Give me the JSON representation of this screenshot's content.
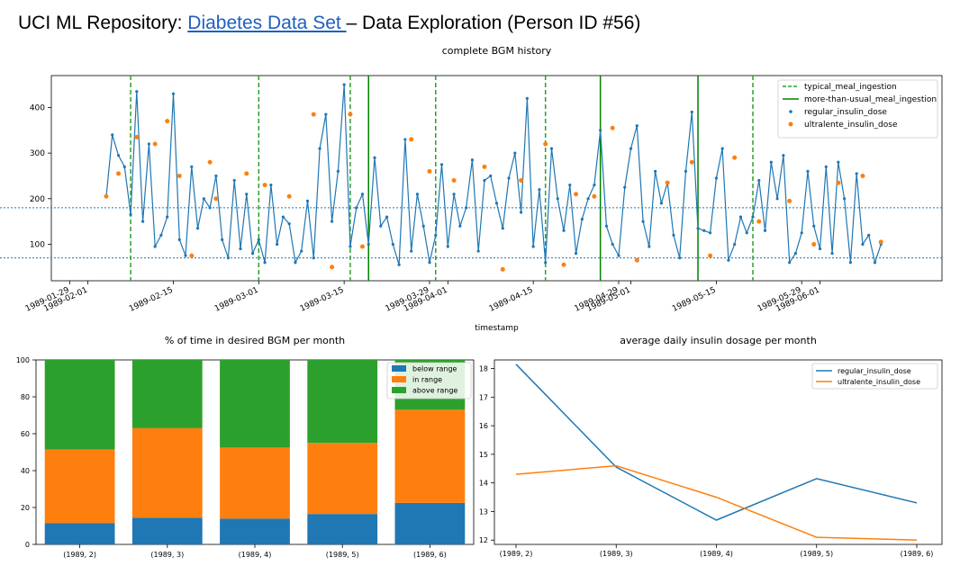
{
  "page": {
    "title_prefix": "UCI ML Repository: ",
    "title_link": "Diabetes Data Set ",
    "title_suffix": "– Data Exploration (Person ID #56)"
  },
  "chart_data": [
    {
      "type": "line",
      "title": "complete BGM history",
      "xlabel": "timestamp",
      "ylabel": "",
      "xlim": [
        "1989-01-26",
        "1989-06-21"
      ],
      "ylim": [
        20,
        470
      ],
      "yticks": [
        100,
        200,
        300,
        400
      ],
      "xticks": [
        "1989-01-29",
        "1989-02-01",
        "1989-02-15",
        "1989-03-01",
        "1989-03-15",
        "1989-03-29",
        "1989-04-01",
        "1989-04-15",
        "1989-04-29",
        "1989-05-01",
        "1989-05-15",
        "1989-05-29",
        "1989-06-01"
      ],
      "hlines": [
        180,
        70
      ],
      "legend": [
        "typical_meal_ingestion",
        "more-than-usual_meal_ingestion",
        "regular_insulin_dose",
        "ultralente_insulin_dose"
      ],
      "legend_position": "top-right",
      "typical_meal_dates": [
        "1989-02-08",
        "1989-03-01",
        "1989-03-16",
        "1989-03-30",
        "1989-04-17",
        "1989-05-21"
      ],
      "more_than_usual_meal_dates": [
        "1989-03-19",
        "1989-04-26",
        "1989-05-12"
      ],
      "bgm_series": {
        "name": "regular_insulin_dose",
        "x": [
          "1989-02-04",
          "1989-02-05",
          "1989-02-06",
          "1989-02-07",
          "1989-02-08",
          "1989-02-09",
          "1989-02-10",
          "1989-02-11",
          "1989-02-12",
          "1989-02-13",
          "1989-02-14",
          "1989-02-15",
          "1989-02-16",
          "1989-02-17",
          "1989-02-18",
          "1989-02-19",
          "1989-02-20",
          "1989-02-21",
          "1989-02-22",
          "1989-02-23",
          "1989-02-24",
          "1989-02-25",
          "1989-02-26",
          "1989-02-27",
          "1989-02-28",
          "1989-03-01",
          "1989-03-02",
          "1989-03-03",
          "1989-03-04",
          "1989-03-05",
          "1989-03-06",
          "1989-03-07",
          "1989-03-08",
          "1989-03-09",
          "1989-03-10",
          "1989-03-11",
          "1989-03-12",
          "1989-03-13",
          "1989-03-14",
          "1989-03-15",
          "1989-03-16",
          "1989-03-17",
          "1989-03-18",
          "1989-03-19",
          "1989-03-20",
          "1989-03-21",
          "1989-03-22",
          "1989-03-23",
          "1989-03-24",
          "1989-03-25",
          "1989-03-26",
          "1989-03-27",
          "1989-03-28",
          "1989-03-29",
          "1989-03-30",
          "1989-03-31",
          "1989-04-01",
          "1989-04-02",
          "1989-04-03",
          "1989-04-04",
          "1989-04-05",
          "1989-04-06",
          "1989-04-07",
          "1989-04-08",
          "1989-04-09",
          "1989-04-10",
          "1989-04-11",
          "1989-04-12",
          "1989-04-13",
          "1989-04-14",
          "1989-04-15",
          "1989-04-16",
          "1989-04-17",
          "1989-04-18",
          "1989-04-19",
          "1989-04-20",
          "1989-04-21",
          "1989-04-22",
          "1989-04-23",
          "1989-04-24",
          "1989-04-25",
          "1989-04-26",
          "1989-04-27",
          "1989-04-28",
          "1989-04-29",
          "1989-04-30",
          "1989-05-01",
          "1989-05-02",
          "1989-05-03",
          "1989-05-04",
          "1989-05-05",
          "1989-05-06",
          "1989-05-07",
          "1989-05-08",
          "1989-05-09",
          "1989-05-10",
          "1989-05-11",
          "1989-05-12",
          "1989-05-13",
          "1989-05-14",
          "1989-05-15",
          "1989-05-16",
          "1989-05-17",
          "1989-05-18",
          "1989-05-19",
          "1989-05-20",
          "1989-05-21",
          "1989-05-22",
          "1989-05-23",
          "1989-05-24",
          "1989-05-25",
          "1989-05-26",
          "1989-05-27",
          "1989-05-28",
          "1989-05-29",
          "1989-05-30",
          "1989-05-31",
          "1989-06-01",
          "1989-06-02",
          "1989-06-03",
          "1989-06-04",
          "1989-06-05",
          "1989-06-06",
          "1989-06-07",
          "1989-06-08",
          "1989-06-09",
          "1989-06-10",
          "1989-06-11"
        ],
        "y": [
          205,
          340,
          295,
          270,
          165,
          435,
          150,
          320,
          95,
          120,
          160,
          430,
          110,
          75,
          270,
          135,
          200,
          180,
          250,
          110,
          70,
          240,
          90,
          210,
          80,
          110,
          60,
          230,
          100,
          160,
          145,
          60,
          85,
          195,
          70,
          310,
          385,
          150,
          260,
          450,
          95,
          180,
          210,
          100,
          290,
          140,
          160,
          100,
          55,
          330,
          85,
          210,
          140,
          60,
          120,
          275,
          95,
          210,
          140,
          180,
          285,
          85,
          240,
          250,
          190,
          135,
          245,
          300,
          170,
          420,
          95,
          220,
          60,
          310,
          200,
          130,
          230,
          80,
          155,
          200,
          230,
          350,
          140,
          100,
          75,
          225,
          310,
          360,
          150,
          95,
          260,
          190,
          235,
          120,
          70,
          260,
          390,
          135,
          130,
          125,
          245,
          310,
          65,
          100,
          160,
          125,
          160,
          240,
          130,
          280,
          200,
          295,
          60,
          80,
          125,
          260,
          140,
          90,
          270,
          80,
          280,
          200,
          60,
          255,
          100,
          120,
          60,
          100
        ]
      },
      "ultralente_dose_points": {
        "name": "ultralente_insulin_dose",
        "x": [
          "1989-02-04",
          "1989-02-06",
          "1989-02-09",
          "1989-02-12",
          "1989-02-14",
          "1989-02-16",
          "1989-02-18",
          "1989-02-21",
          "1989-02-22",
          "1989-02-27",
          "1989-03-02",
          "1989-03-06",
          "1989-03-10",
          "1989-03-13",
          "1989-03-16",
          "1989-03-18",
          "1989-03-26",
          "1989-03-29",
          "1989-04-02",
          "1989-04-07",
          "1989-04-10",
          "1989-04-13",
          "1989-04-17",
          "1989-04-20",
          "1989-04-22",
          "1989-04-25",
          "1989-04-28",
          "1989-05-02",
          "1989-05-07",
          "1989-05-11",
          "1989-05-14",
          "1989-05-18",
          "1989-05-22",
          "1989-05-27",
          "1989-05-31",
          "1989-06-04",
          "1989-06-08",
          "1989-06-11"
        ],
        "y": [
          205,
          255,
          335,
          320,
          370,
          250,
          75,
          280,
          200,
          255,
          230,
          205,
          385,
          50,
          385,
          95,
          330,
          260,
          240,
          270,
          45,
          240,
          320,
          55,
          210,
          205,
          355,
          65,
          235,
          280,
          75,
          290,
          150,
          195,
          100,
          235,
          250,
          105
        ]
      }
    },
    {
      "type": "bar",
      "title": "% of time in desired BGM per month",
      "categories": [
        "(1989, 2)",
        "(1989, 3)",
        "(1989, 4)",
        "(1989, 5)",
        "(1989, 6)"
      ],
      "series": [
        {
          "name": "below range",
          "values": [
            11.5,
            14.5,
            14,
            16.5,
            22.5
          ]
        },
        {
          "name": "in range",
          "values": [
            40,
            48.5,
            38.5,
            38.5,
            50.5
          ]
        },
        {
          "name": "above range",
          "values": [
            48.5,
            37,
            47.5,
            45,
            27
          ]
        }
      ],
      "stacked": true,
      "ylim": [
        0,
        100
      ],
      "yticks": [
        0,
        20,
        40,
        60,
        80,
        100
      ],
      "legend_position": "top-right",
      "colors": [
        "#1f77b4",
        "#ff7f0e",
        "#2ca02c"
      ]
    },
    {
      "type": "line",
      "title": "average daily insulin dosage per month",
      "categories": [
        "(1989, 2)",
        "(1989, 3)",
        "(1989, 4)",
        "(1989, 5)",
        "(1989, 6)"
      ],
      "series": [
        {
          "name": "regular_insulin_dose",
          "values": [
            18.15,
            14.55,
            12.7,
            14.15,
            13.3
          ]
        },
        {
          "name": "ultralente_insulin_dose",
          "values": [
            14.3,
            14.6,
            13.5,
            12.1,
            12.0
          ]
        }
      ],
      "ylim": [
        11.85,
        18.3
      ],
      "yticks": [
        12,
        13,
        14,
        15,
        16,
        17,
        18
      ],
      "legend_position": "top-right",
      "colors": [
        "#1f77b4",
        "#ff7f0e"
      ]
    }
  ]
}
